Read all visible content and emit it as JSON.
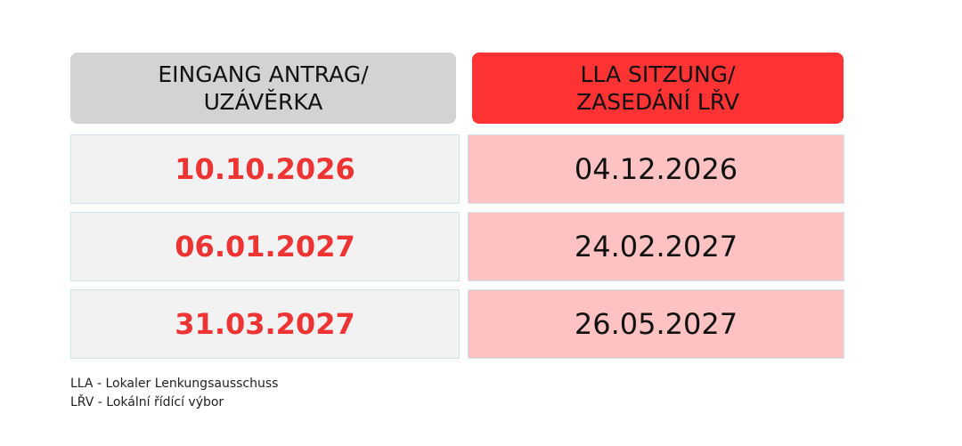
{
  "table": {
    "headers": [
      "EINGANG ANTRAG/\nUZÁVĚRKA",
      "LLA SITZUNG/\nZASEDÁNÍ LŘV"
    ],
    "rows": [
      [
        "10.10.2026",
        "04.12.2026"
      ],
      [
        "06.01.2027",
        "24.02.2027"
      ],
      [
        "31.03.2027",
        "26.05.2027"
      ]
    ]
  },
  "notes": [
    "LLA - Lokaler Lenkungsausschuss",
    "LŘV - Lokální řídící výbor"
  ]
}
